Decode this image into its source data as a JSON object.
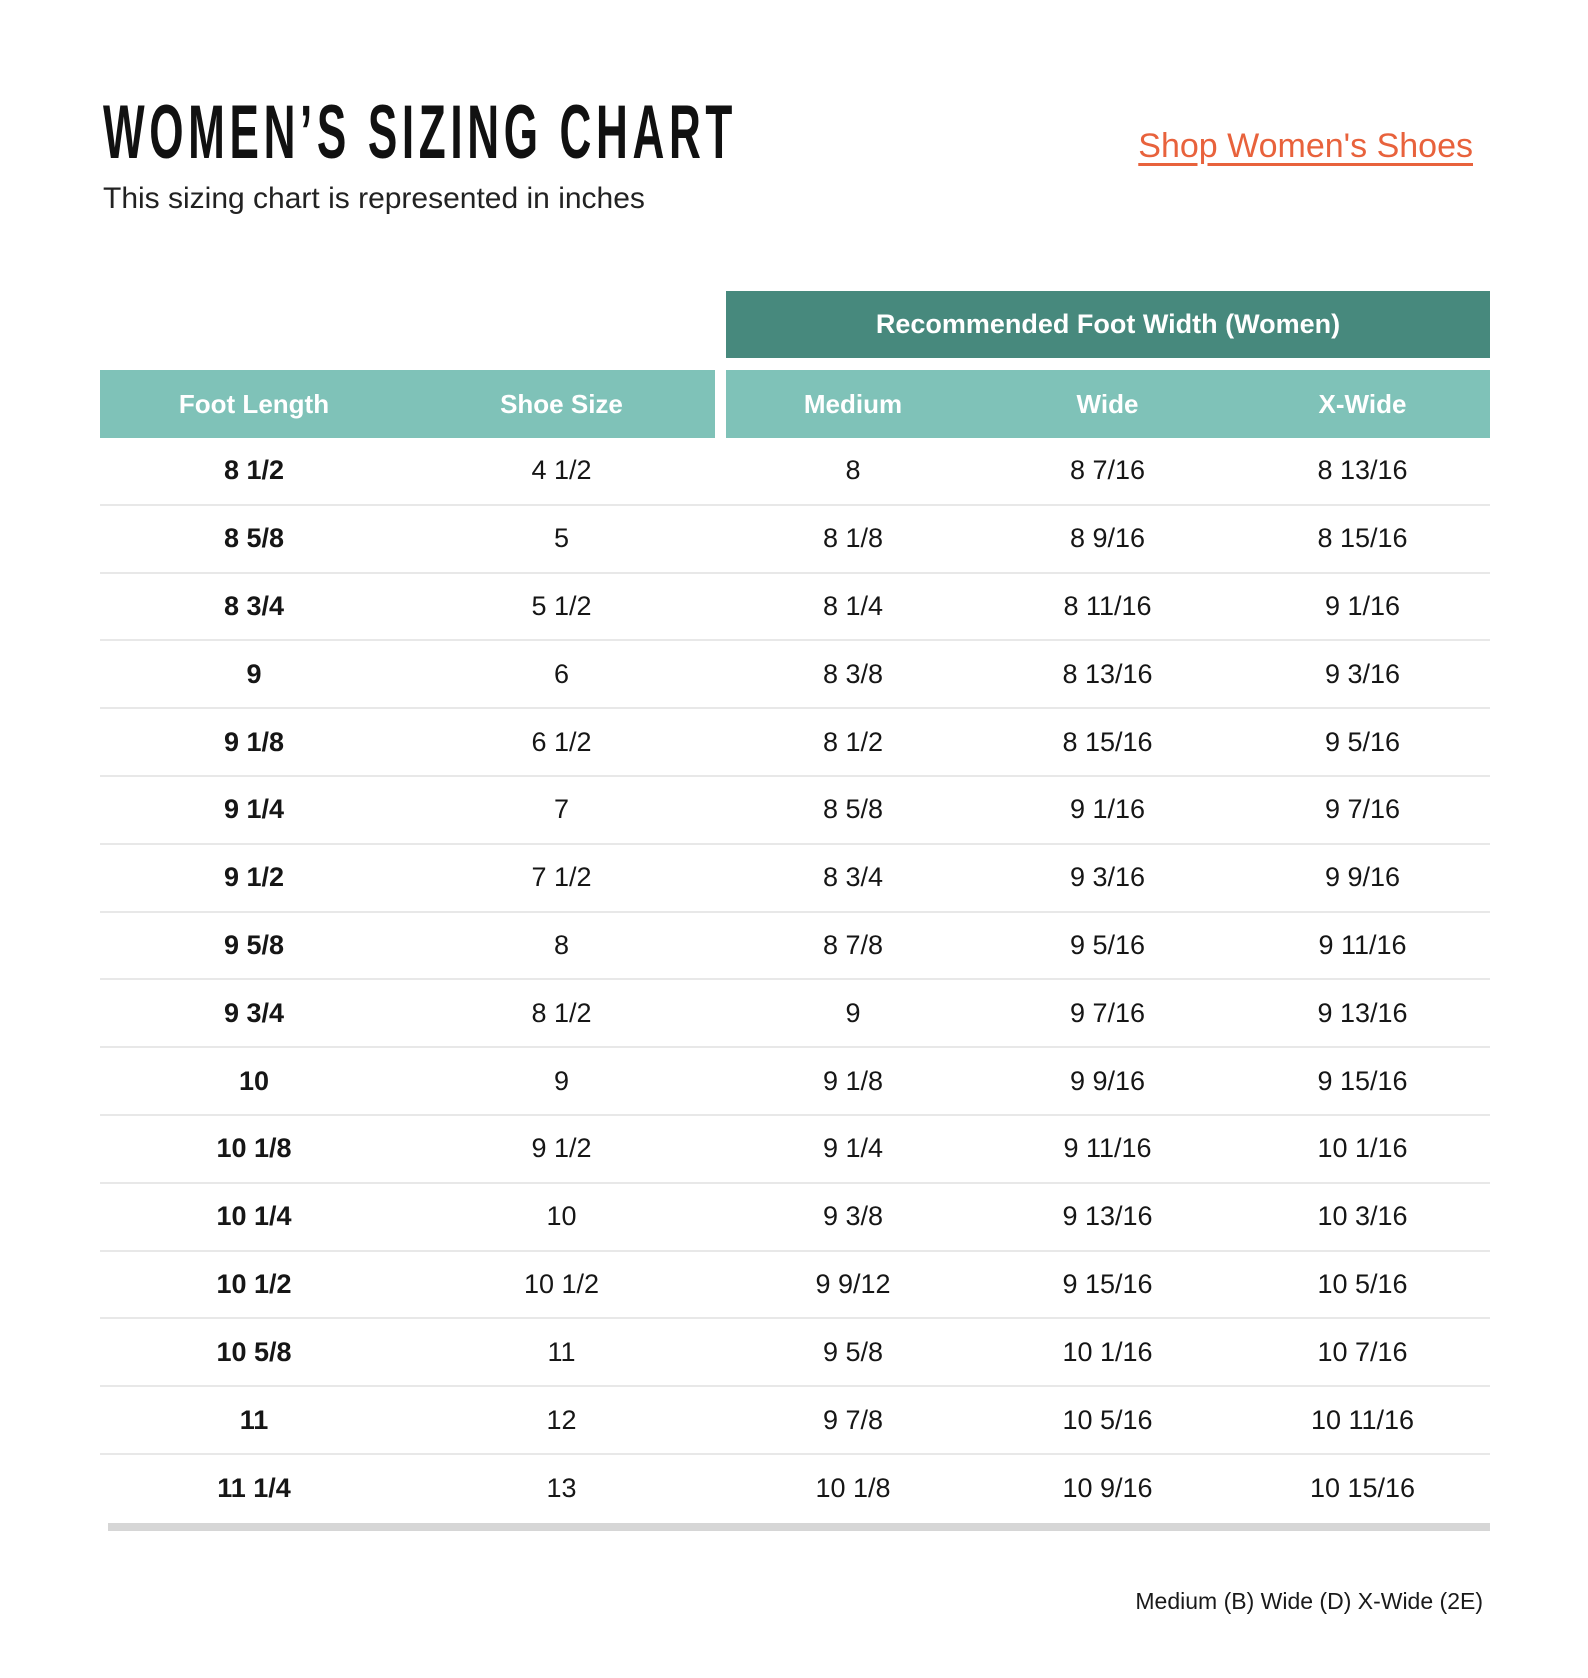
{
  "page": {
    "title": "WOMEN’S SIZING CHART",
    "subtitle": "This sizing chart is represented in inches",
    "link_label": "Shop Women's Shoes",
    "footnote": "Medium (B) Wide (D) X-Wide (2E)"
  },
  "colors": {
    "teal_dark": "#47897D",
    "teal_light": "#7FC2B8",
    "link_orange": "#E8623C",
    "row_line": "#E8E8E8",
    "bottom_bar": "#D6D6D6"
  },
  "chart_data": {
    "type": "table",
    "title": "WOMEN’S SIZING CHART",
    "units": "inches",
    "group_header": "Recommended Foot Width (Women)",
    "group_header_spans_columns": [
      "Medium",
      "Wide",
      "X-Wide"
    ],
    "columns": [
      "Foot Length",
      "Shoe Size",
      "Medium",
      "Wide",
      "X-Wide"
    ],
    "rows": [
      [
        "8 1/2",
        "4 1/2",
        "8",
        "8 7/16",
        "8 13/16"
      ],
      [
        "8 5/8",
        "5",
        "8 1/8",
        "8 9/16",
        "8 15/16"
      ],
      [
        "8 3/4",
        "5 1/2",
        "8 1/4",
        "8 11/16",
        "9 1/16"
      ],
      [
        "9",
        "6",
        "8 3/8",
        "8 13/16",
        "9 3/16"
      ],
      [
        "9 1/8",
        "6 1/2",
        "8 1/2",
        "8 15/16",
        "9 5/16"
      ],
      [
        "9 1/4",
        "7",
        "8 5/8",
        "9 1/16",
        "9 7/16"
      ],
      [
        "9 1/2",
        "7 1/2",
        "8 3/4",
        "9 3/16",
        "9 9/16"
      ],
      [
        "9 5/8",
        "8",
        "8 7/8",
        "9 5/16",
        "9 11/16"
      ],
      [
        "9 3/4",
        "8 1/2",
        "9",
        "9 7/16",
        "9 13/16"
      ],
      [
        "10",
        "9",
        "9 1/8",
        "9 9/16",
        "9 15/16"
      ],
      [
        "10 1/8",
        "9 1/2",
        "9 1/4",
        "9 11/16",
        "10 1/16"
      ],
      [
        "10 1/4",
        "10",
        "9 3/8",
        "9 13/16",
        "10 3/16"
      ],
      [
        "10 1/2",
        "10 1/2",
        "9 9/12",
        "9 15/16",
        "10 5/16"
      ],
      [
        "10 5/8",
        "11",
        "9 5/8",
        "10 1/16",
        "10 7/16"
      ],
      [
        "11",
        "12",
        "9 7/8",
        "10 5/16",
        "10 11/16"
      ],
      [
        "11 1/4",
        "13",
        "10 1/8",
        "10 9/16",
        "10 15/16"
      ]
    ],
    "footnote": "Medium (B) Wide (D) X-Wide (2E)"
  }
}
